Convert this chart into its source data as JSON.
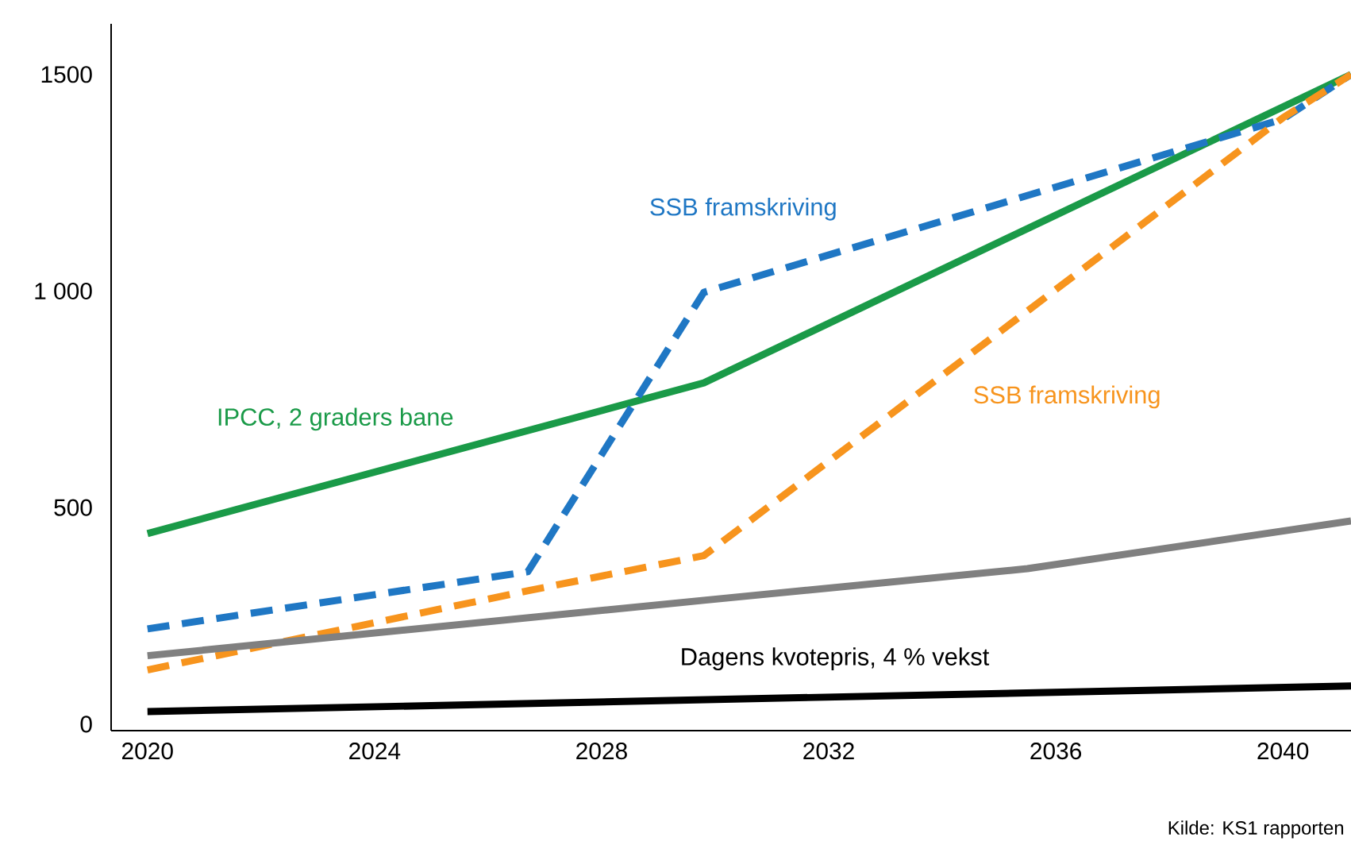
{
  "chart_data": {
    "type": "line",
    "series": [
      {
        "name": "IPCC, 2 graders bane",
        "color": "#1a9a48",
        "x": [
          2020,
          2029.8,
          2041.2
        ],
        "values": [
          440,
          788,
          1500
        ]
      },
      {
        "name": "SSB framskriving",
        "color": "#1f77c4",
        "line_style": "dashed",
        "x": [
          2020,
          2026.7,
          2029.8,
          2040,
          2041.2
        ],
        "values": [
          220,
          352,
          997,
          1397,
          1500
        ]
      },
      {
        "name": "SSB framskriving",
        "color": "#f7941d",
        "line_style": "dashed",
        "x": [
          2020,
          2026.7,
          2029.8,
          2040,
          2041.2
        ],
        "values": [
          125,
          308,
          389,
          1400,
          1500
        ]
      },
      {
        "color": "#808080",
        "x": [
          2020,
          2029.8,
          2035.5,
          2041.2
        ],
        "values": [
          158,
          286,
          359,
          469
        ]
      },
      {
        "name": "Dagens kvotepris, 4 % vekst",
        "color": "#000000",
        "x": [
          2020,
          2041.2
        ],
        "values": [
          29,
          88
        ]
      }
    ],
    "xlim": [
      2019.36,
      2041.2
    ],
    "ylim": [
      -15,
      1617
    ],
    "xticks": [
      2020,
      2024,
      2028,
      2032,
      2036,
      2040
    ],
    "yticks": [
      0,
      500,
      {
        "value": 1000,
        "label": "1 000"
      },
      1500
    ],
    "grid": false,
    "legend": false,
    "marker": "none",
    "line_style": "solid",
    "annotations": [
      "Kilde: KS1 rapporten"
    ]
  }
}
